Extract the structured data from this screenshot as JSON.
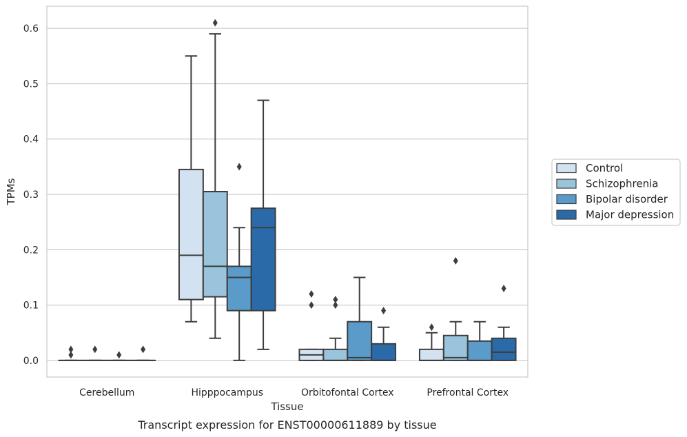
{
  "chart_data": {
    "type": "boxplot",
    "title": "",
    "caption": "Transcript expression for ENST00000611889 by tissue",
    "xlabel": "Tissue",
    "ylabel": "TPMs",
    "ylim": [
      -0.03,
      0.64
    ],
    "yticks": [
      "0.0",
      "0.1",
      "0.2",
      "0.3",
      "0.4",
      "0.5",
      "0.6"
    ],
    "ytick_values": [
      0,
      0.1,
      0.2,
      0.3,
      0.4,
      0.5,
      0.6
    ],
    "grid": "horizontal",
    "legend_position": "right",
    "categories": [
      "Cerebellum",
      "Hipppocampus",
      "Orbitofontal Cortex",
      "Prefrontal Cortex"
    ],
    "series": [
      {
        "name": "Control",
        "color": "#d3e2f1",
        "boxes": [
          {
            "whislo": 0,
            "q1": 0,
            "med": 0,
            "q3": 0,
            "whishi": 0,
            "fliers": [
              0.01,
              0.02
            ]
          },
          {
            "whislo": 0.07,
            "q1": 0.11,
            "med": 0.19,
            "q3": 0.345,
            "whishi": 0.55,
            "fliers": []
          },
          {
            "whislo": 0,
            "q1": 0,
            "med": 0.01,
            "q3": 0.02,
            "whishi": 0.02,
            "fliers": [
              0.1,
              0.12
            ]
          },
          {
            "whislo": 0,
            "q1": 0,
            "med": 0,
            "q3": 0.02,
            "whishi": 0.05,
            "fliers": [
              0.06
            ]
          }
        ]
      },
      {
        "name": "Schizophrenia",
        "color": "#9ac3dc",
        "boxes": [
          {
            "whislo": 0,
            "q1": 0,
            "med": 0,
            "q3": 0,
            "whishi": 0,
            "fliers": [
              0.02
            ]
          },
          {
            "whislo": 0.04,
            "q1": 0.115,
            "med": 0.17,
            "q3": 0.305,
            "whishi": 0.59,
            "fliers": [
              0.61
            ]
          },
          {
            "whislo": 0,
            "q1": 0,
            "med": 0,
            "q3": 0.02,
            "whishi": 0.04,
            "fliers": [
              0.1,
              0.11
            ]
          },
          {
            "whislo": 0,
            "q1": 0,
            "med": 0.005,
            "q3": 0.045,
            "whishi": 0.07,
            "fliers": [
              0.18
            ]
          }
        ]
      },
      {
        "name": "Bipolar disorder",
        "color": "#5a9bc9",
        "boxes": [
          {
            "whislo": 0,
            "q1": 0,
            "med": 0,
            "q3": 0,
            "whishi": 0,
            "fliers": [
              0.01
            ]
          },
          {
            "whislo": 0,
            "q1": 0.09,
            "med": 0.15,
            "q3": 0.17,
            "whishi": 0.24,
            "fliers": [
              0.35
            ]
          },
          {
            "whislo": 0,
            "q1": 0,
            "med": 0.005,
            "q3": 0.07,
            "whishi": 0.15,
            "fliers": []
          },
          {
            "whislo": 0,
            "q1": 0,
            "med": 0,
            "q3": 0.035,
            "whishi": 0.07,
            "fliers": []
          }
        ]
      },
      {
        "name": "Major depression",
        "color": "#2a6aa9",
        "boxes": [
          {
            "whislo": 0,
            "q1": 0,
            "med": 0,
            "q3": 0,
            "whishi": 0,
            "fliers": [
              0.02
            ]
          },
          {
            "whislo": 0.02,
            "q1": 0.09,
            "med": 0.24,
            "q3": 0.275,
            "whishi": 0.47,
            "fliers": []
          },
          {
            "whislo": 0,
            "q1": 0,
            "med": 0,
            "q3": 0.03,
            "whishi": 0.06,
            "fliers": [
              0.09
            ]
          },
          {
            "whislo": 0,
            "q1": 0,
            "med": 0.015,
            "q3": 0.04,
            "whishi": 0.06,
            "fliers": [
              0.13
            ]
          }
        ]
      }
    ]
  }
}
